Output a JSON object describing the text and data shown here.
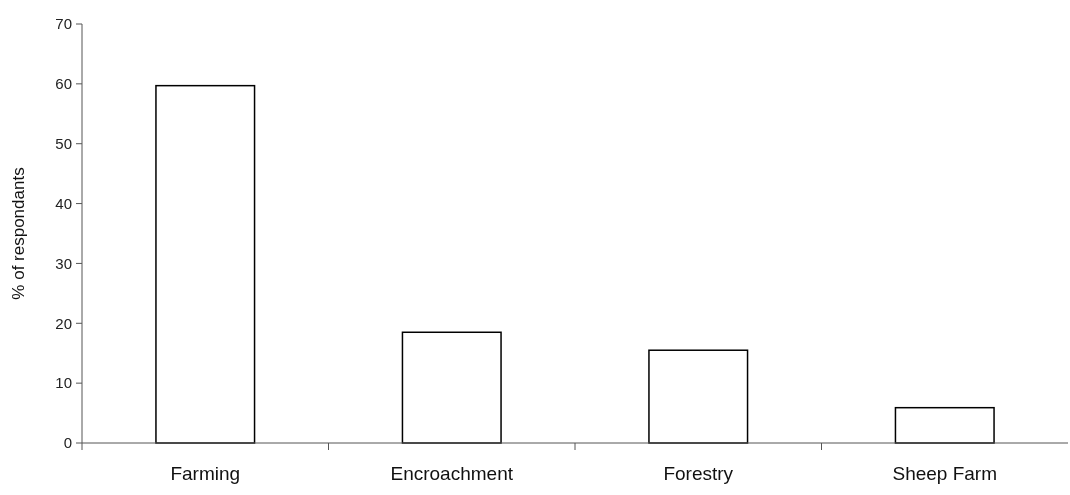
{
  "chart_data": {
    "type": "bar",
    "ylabel": "% of respondants",
    "categories": [
      "Farming",
      "Encroachment",
      "Forestry",
      "Sheep Farm"
    ],
    "values": [
      59.7,
      18.5,
      15.5,
      5.9
    ],
    "color": "#ffffff",
    "ylim": [
      0,
      70
    ],
    "yticks": [
      0,
      10,
      20,
      30,
      40,
      50,
      60,
      70
    ],
    "grid": false
  }
}
